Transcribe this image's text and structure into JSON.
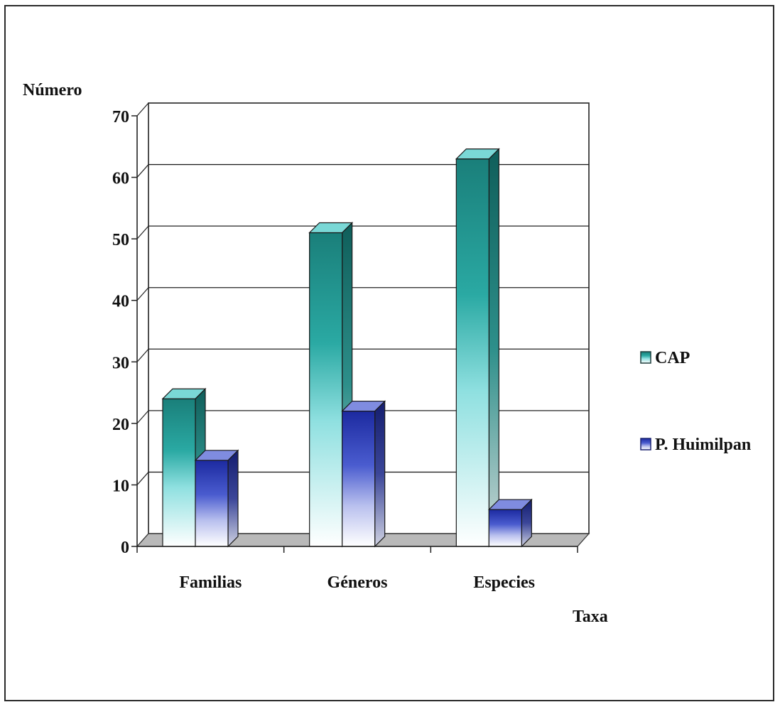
{
  "chart_data": {
    "type": "bar",
    "ylabel": "Número",
    "xlabel": "Taxa",
    "categories": [
      "Familias",
      "Géneros",
      "Especies"
    ],
    "yticks": [
      "0",
      "10",
      "20",
      "30",
      "40",
      "50",
      "60",
      "70"
    ],
    "ylim": [
      0,
      70
    ],
    "grid": true,
    "legend_position": "right",
    "series": [
      {
        "name": "CAP",
        "values": [
          24,
          51,
          63
        ],
        "color": "#1f8a84"
      },
      {
        "name": "P. Huimilpan",
        "values": [
          14,
          22,
          6
        ],
        "color": "#2a3aa8"
      }
    ]
  }
}
